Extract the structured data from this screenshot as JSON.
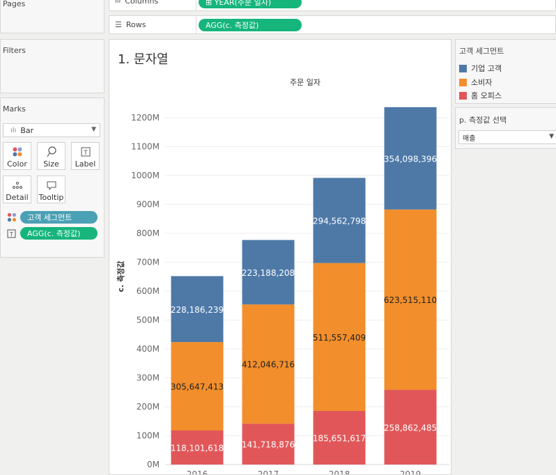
{
  "left": {
    "pages_title": "Pages",
    "filters_title": "Filters",
    "marks_title": "Marks",
    "mark_type": "Bar",
    "cards": [
      {
        "label": "Color",
        "icon": "color-dots-icon"
      },
      {
        "label": "Size",
        "icon": "lasso-icon"
      },
      {
        "label": "Label",
        "icon": "text-box-icon"
      },
      {
        "label": "Detail",
        "icon": "dots-icon"
      },
      {
        "label": "Tooltip",
        "icon": "speech-bubble-icon"
      }
    ],
    "pills": {
      "color": "고객 세그먼트",
      "label": "AGG(c. 측정값)"
    }
  },
  "shelves": {
    "columns_label": "Columns",
    "columns_pill": "⊞ YEAR(주문 일자)",
    "rows_label": "Rows",
    "rows_pill": "AGG(c. 측정값)"
  },
  "sheet": {
    "title": "1. 문자열"
  },
  "legend": {
    "title": "고객 세그먼트",
    "items": [
      {
        "label": "기업 고객",
        "color": "#4e79a7"
      },
      {
        "label": "소비자",
        "color": "#f28e2b"
      },
      {
        "label": "홈 오피스",
        "color": "#e15759"
      }
    ]
  },
  "parameter": {
    "title": "p. 측정값 선택",
    "value": "매출"
  },
  "chart_data": {
    "type": "bar",
    "stacked": true,
    "title": "주문 일자",
    "xlabel": "",
    "ylabel": "c. 측정값",
    "categories": [
      "2016",
      "2017",
      "2018",
      "2019"
    ],
    "series": [
      {
        "name": "홈 오피스",
        "color": "#e15759",
        "values": [
          118101618,
          141718876,
          185651617,
          258862485
        ],
        "labels": [
          "118,101,618",
          "141,718,876",
          "185,651,617",
          "258,862,485"
        ]
      },
      {
        "name": "소비자",
        "color": "#f28e2b",
        "values": [
          305647413,
          412046716,
          511557409,
          623515110
        ],
        "labels": [
          "305,647,413",
          "412,046,716",
          "511,557,409",
          "623,515,110"
        ]
      },
      {
        "name": "기업 고객",
        "color": "#4e79a7",
        "values": [
          228186239,
          223188208,
          294562798,
          354098396
        ],
        "labels": [
          "228,186,239",
          "223,188,208",
          "294,562,798",
          "354,098,396"
        ]
      }
    ],
    "yticks": [
      "0M",
      "100M",
      "200M",
      "300M",
      "400M",
      "500M",
      "600M",
      "700M",
      "800M",
      "900M",
      "1000M",
      "1100M",
      "1200M"
    ],
    "ylim": [
      0,
      1200000000
    ],
    "grid": true
  }
}
